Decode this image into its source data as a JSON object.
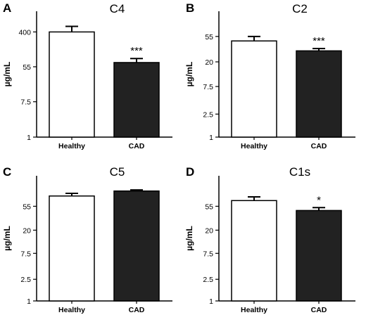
{
  "chart_data": [
    {
      "panel": "A",
      "title": "C4",
      "type": "bar",
      "scale": "log",
      "ylabel": "µg/mL",
      "yticks": [
        1,
        7.5,
        55,
        400
      ],
      "ylim": [
        1,
        1300
      ],
      "categories": [
        "Healthy",
        "CAD"
      ],
      "colors": [
        "#ffffff",
        "#222222"
      ],
      "values": [
        400,
        70
      ],
      "errors_upper": [
        550,
        88
      ],
      "significance": [
        "",
        "***"
      ]
    },
    {
      "panel": "B",
      "title": "C2",
      "type": "bar",
      "scale": "log",
      "ylabel": "µg/mL",
      "yticks": [
        1,
        2.5,
        7.5,
        20,
        55
      ],
      "ylim": [
        1,
        150
      ],
      "categories": [
        "Healthy",
        "CAD"
      ],
      "colors": [
        "#ffffff",
        "#222222"
      ],
      "values": [
        46,
        31
      ],
      "errors_upper": [
        55,
        34
      ],
      "significance": [
        "",
        "***"
      ]
    },
    {
      "panel": "C",
      "title": "C5",
      "type": "bar",
      "scale": "log",
      "ylabel": "µg/mL",
      "yticks": [
        1,
        2.5,
        7.5,
        20,
        55
      ],
      "ylim": [
        1,
        200
      ],
      "categories": [
        "Healthy",
        "CAD"
      ],
      "colors": [
        "#ffffff",
        "#222222"
      ],
      "values": [
        85,
        105
      ],
      "errors_upper": [
        95,
        110
      ],
      "significance": [
        "",
        ""
      ]
    },
    {
      "panel": "D",
      "title": "C1s",
      "type": "bar",
      "scale": "log",
      "ylabel": "µg/mL",
      "yticks": [
        1,
        2.5,
        7.5,
        20,
        55
      ],
      "ylim": [
        1,
        200
      ],
      "categories": [
        "Healthy",
        "CAD"
      ],
      "colors": [
        "#ffffff",
        "#222222"
      ],
      "values": [
        70,
        46
      ],
      "errors_upper": [
        82,
        52
      ],
      "significance": [
        "",
        "*"
      ]
    }
  ]
}
